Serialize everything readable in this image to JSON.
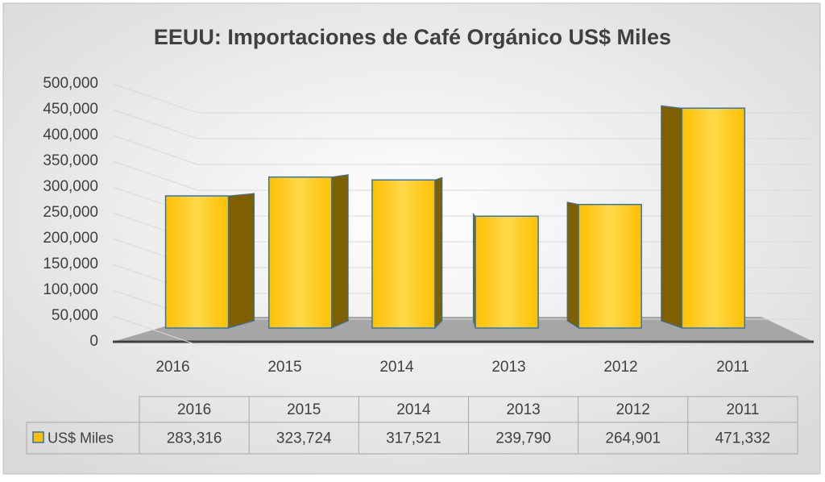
{
  "chart_data": {
    "type": "bar3d",
    "title": "EEUU: Importaciones de Café Orgánico US$ Miles",
    "categories": [
      "2016",
      "2015",
      "2014",
      "2013",
      "2012",
      "2011"
    ],
    "series": [
      {
        "name": "US$ Miles",
        "color": "#ffc000",
        "values": [
          283316,
          323724,
          317521,
          239790,
          264901,
          471332
        ],
        "value_labels": [
          "283,316",
          "323,724",
          "317,521",
          "239,790",
          "264,901",
          "471,332"
        ]
      }
    ],
    "ylim": [
      0,
      500000
    ],
    "yticks": [
      0,
      {
        "value": 50000,
        "label": "50,000"
      },
      {
        "value": 100000,
        "label": "100,000"
      },
      {
        "value": 150000,
        "label": "150,000"
      },
      {
        "value": 200000,
        "label": "200,000"
      },
      {
        "value": 250000,
        "label": "250,000"
      },
      {
        "value": 300000,
        "label": "300,000"
      },
      {
        "value": 350000,
        "label": "350,000"
      },
      {
        "value": 400000,
        "label": "400,000"
      },
      {
        "value": 450000,
        "label": "450,000"
      },
      {
        "value": 500000,
        "label": "500,000"
      }
    ],
    "grid": true
  }
}
